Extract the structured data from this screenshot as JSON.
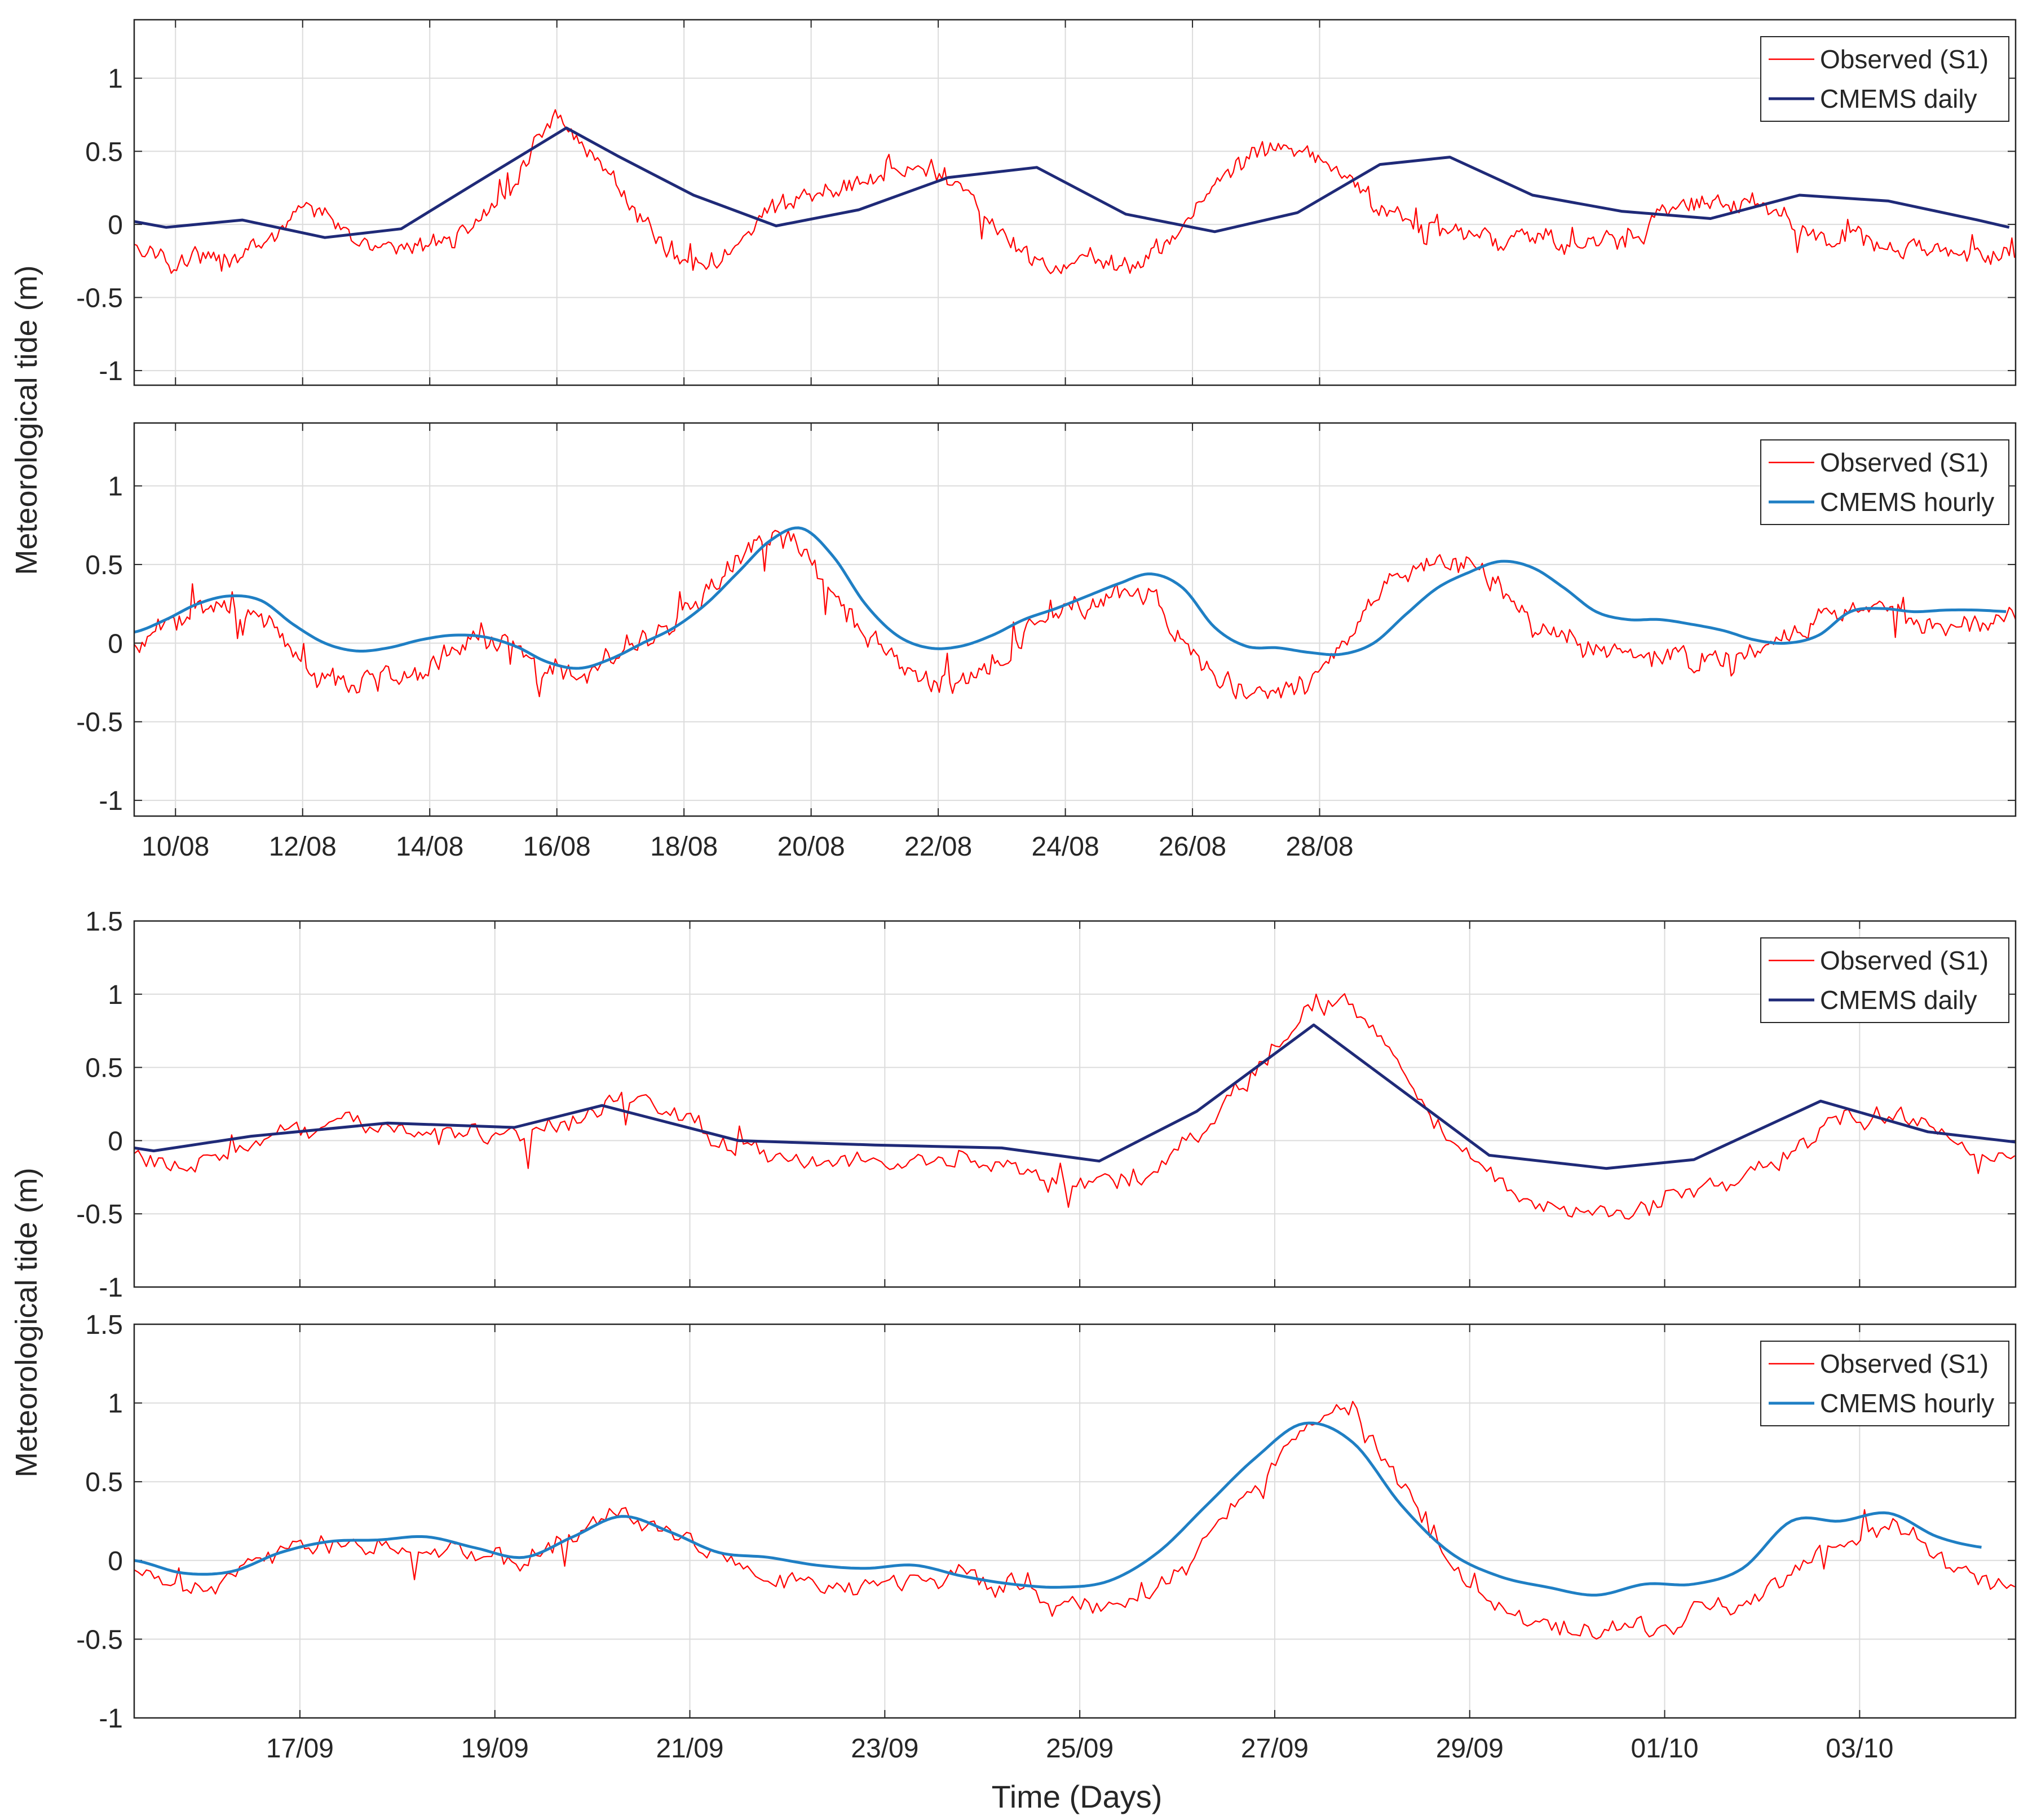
{
  "figure": {
    "ylabel_top_group": "Meteorological tide (m)",
    "ylabel_bottom_group": "Meteorological tide (m)",
    "xlabel": "Time (Days)"
  },
  "colors": {
    "observed": "#ff0000",
    "cmems_daily": "#1f2a78",
    "cmems_hourly": "#1f7fc4",
    "grid": "#dcdcdc",
    "axis": "#262626"
  },
  "chart_data": [
    {
      "type": "line",
      "panel": "a1",
      "xlim": [
        "09/08",
        "28/08+0.55"
      ],
      "ylim": [
        -1.1,
        1.4
      ],
      "yticks": [
        1,
        0.5,
        0,
        -0.5,
        -1
      ],
      "ytick_labels": [
        "1",
        "0.5",
        "0",
        "-0.5",
        "-1"
      ],
      "xticks": [
        "10/08",
        "12/08",
        "14/08",
        "16/08",
        "18/08",
        "20/08",
        "22/08",
        "24/08",
        "26/08",
        "28/08"
      ],
      "xtick_labels_shown": false,
      "grid": true,
      "legend_position": "top-right",
      "series": [
        {
          "name": "Observed (S1)",
          "style": "noisy-hourly",
          "x_days": [
            0,
            0.5,
            1,
            1.5,
            2,
            2.5,
            3,
            3.5,
            4,
            4.5,
            5,
            5.5,
            6,
            6.3,
            6.6,
            7,
            7.5,
            8,
            8.5,
            9,
            9.5,
            10,
            10.5,
            11,
            11.5,
            12,
            12.5,
            13,
            13.5,
            14,
            14.5,
            15,
            15.5,
            16,
            16.5,
            17,
            17.5,
            18,
            18.5,
            19,
            19.5,
            20,
            20.5,
            21,
            21.5,
            22,
            22.5,
            23,
            23.5,
            24,
            24.5,
            25,
            25.5,
            26,
            26.5,
            27,
            27.5,
            28,
            28.5,
            29,
            29.5
          ],
          "values": [
            -0.15,
            -0.25,
            -0.25,
            -0.2,
            -0.1,
            0.05,
            0.05,
            -0.1,
            -0.2,
            -0.15,
            -0.1,
            0.05,
            0.3,
            0.55,
            0.7,
            0.6,
            0.3,
            0.0,
            -0.2,
            -0.25,
            -0.15,
            0.1,
            0.2,
            0.25,
            0.3,
            0.35,
            0.4,
            0.25,
            0.0,
            -0.25,
            -0.3,
            -0.25,
            -0.3,
            -0.2,
            0.0,
            0.25,
            0.45,
            0.55,
            0.5,
            0.35,
            0.15,
            0.0,
            -0.05,
            -0.05,
            -0.1,
            -0.05,
            -0.15,
            -0.1,
            -0.15,
            0.05,
            0.15,
            0.15,
            0.15,
            0.05,
            -0.05,
            -0.1,
            -0.15,
            -0.15,
            -0.2,
            -0.25,
            -0.2
          ]
        },
        {
          "name": "CMEMS daily",
          "x_days": [
            0,
            0.5,
            1.7,
            3,
            4.2,
            5.4,
            6.8,
            7.6,
            8.8,
            10.1,
            11.4,
            12.8,
            14.2,
            15.6,
            17,
            18.3,
            19.6,
            20.7,
            22,
            23.4,
            24.8,
            26.2,
            27.6,
            29.0,
            29.5
          ],
          "values": [
            0.02,
            -0.02,
            0.03,
            -0.09,
            -0.03,
            0.29,
            0.66,
            0.47,
            0.2,
            -0.01,
            0.1,
            0.32,
            0.39,
            0.07,
            -0.05,
            0.08,
            0.41,
            0.46,
            0.2,
            0.09,
            0.04,
            0.2,
            0.16,
            0.03,
            -0.02
          ]
        }
      ]
    },
    {
      "type": "line",
      "panel": "a2",
      "xlim": [
        "09/08",
        "28/08+0.55"
      ],
      "ylim": [
        -1.1,
        1.4
      ],
      "yticks": [
        1,
        0.5,
        0,
        -0.5,
        -1
      ],
      "ytick_labels": [
        "1",
        "0.5",
        "0",
        "-0.5",
        "-1"
      ],
      "xticks": [
        "10/08",
        "12/08",
        "14/08",
        "16/08",
        "18/08",
        "20/08",
        "22/08",
        "24/08",
        "26/08",
        "28/08"
      ],
      "xtick_labels": [
        "10/08",
        "12/08",
        "14/08",
        "16/08",
        "18/08",
        "20/08",
        "22/08",
        "24/08",
        "26/08",
        "28/08"
      ],
      "grid": true,
      "legend_position": "top-right",
      "series": [
        {
          "name": "Observed (S1)",
          "style": "noisy-hourly",
          "x_days": [
            0,
            0.5,
            1,
            1.5,
            2,
            2.5,
            3,
            3.5,
            4,
            4.5,
            5,
            5.5,
            6,
            6.5,
            7,
            7.5,
            8,
            8.5,
            9,
            9.5,
            10,
            10.5,
            11,
            11.5,
            12,
            12.5,
            13,
            13.5,
            14,
            14.5,
            15,
            15.5,
            16,
            16.5,
            17,
            17.5,
            18,
            18.5,
            19,
            19.5,
            20,
            20.5,
            21,
            21.5,
            22,
            22.5,
            23,
            23.5,
            24,
            24.5,
            25,
            25.5,
            26,
            26.5,
            27,
            27.5,
            28,
            28.5,
            29,
            29.5
          ],
          "values": [
            -0.05,
            0.1,
            0.2,
            0.25,
            0.15,
            -0.1,
            -0.2,
            -0.25,
            -0.2,
            -0.15,
            -0.05,
            0.0,
            0.0,
            -0.15,
            -0.2,
            -0.1,
            0.0,
            0.1,
            0.3,
            0.55,
            0.7,
            0.6,
            0.3,
            0.05,
            -0.1,
            -0.25,
            -0.25,
            -0.2,
            0.05,
            0.2,
            0.25,
            0.35,
            0.3,
            0.0,
            -0.25,
            -0.3,
            -0.3,
            -0.25,
            0.0,
            0.25,
            0.45,
            0.55,
            0.5,
            0.35,
            0.1,
            0.0,
            -0.05,
            -0.05,
            -0.1,
            -0.1,
            -0.15,
            -0.05,
            0.05,
            0.15,
            0.2,
            0.2,
            0.15,
            0.1,
            0.15,
            0.15
          ]
        },
        {
          "name": "CMEMS hourly",
          "x_days": [
            0,
            0.5,
            1,
            1.5,
            2,
            2.5,
            3,
            3.5,
            4,
            4.5,
            5,
            5.5,
            6,
            6.5,
            7,
            7.5,
            8,
            8.5,
            9,
            9.5,
            10,
            10.5,
            11,
            11.5,
            12,
            12.5,
            13,
            13.5,
            14,
            14.5,
            15,
            15.5,
            16,
            16.5,
            17,
            17.5,
            18,
            18.5,
            19,
            19.5,
            20,
            20.5,
            21,
            21.5,
            22,
            22.5,
            23,
            23.5,
            24,
            24.5,
            25,
            25.5,
            26,
            26.5,
            27,
            27.5,
            28,
            28.5,
            29,
            29.5
          ],
          "values": [
            0.07,
            0.15,
            0.25,
            0.3,
            0.27,
            0.12,
            0.0,
            -0.05,
            -0.03,
            0.02,
            0.05,
            0.04,
            -0.02,
            -0.12,
            -0.16,
            -0.1,
            0.0,
            0.1,
            0.25,
            0.45,
            0.65,
            0.73,
            0.55,
            0.25,
            0.05,
            -0.03,
            -0.02,
            0.05,
            0.15,
            0.22,
            0.3,
            0.38,
            0.44,
            0.35,
            0.1,
            -0.02,
            -0.03,
            -0.06,
            -0.07,
            0.0,
            0.18,
            0.35,
            0.45,
            0.52,
            0.48,
            0.35,
            0.2,
            0.15,
            0.15,
            0.12,
            0.08,
            0.02,
            0.0,
            0.05,
            0.2,
            0.22,
            0.2,
            0.21,
            0.21,
            0.2
          ]
        }
      ]
    },
    {
      "type": "line",
      "panel": "b1",
      "xlim": [
        "15/09+0.3",
        "04/10+0.6"
      ],
      "ylim": [
        -1,
        1.5
      ],
      "yticks": [
        1.5,
        1,
        0.5,
        0,
        -0.5,
        -1
      ],
      "ytick_labels": [
        "1.5",
        "1",
        "0.5",
        "0",
        "-0.5",
        "-1"
      ],
      "xticks": [
        "17/09",
        "19/09",
        "21/09",
        "23/09",
        "25/09",
        "27/09",
        "29/09",
        "01/10",
        "03/10"
      ],
      "xtick_labels_shown": false,
      "grid": true,
      "legend_position": "top-right",
      "series": [
        {
          "name": "Observed (S1)",
          "style": "noisy-hourly",
          "x_days": [
            0,
            0.5,
            1,
            1.5,
            2,
            2.5,
            3,
            3.5,
            4,
            4.5,
            5,
            5.5,
            6,
            6.5,
            7,
            7.5,
            8,
            8.5,
            9,
            9.5,
            10,
            10.5,
            11,
            11.5,
            12,
            12.5,
            13,
            13.5,
            14,
            14.5,
            15,
            15.5,
            16,
            16.5,
            17,
            17.5,
            18,
            18.5,
            19
          ],
          "values": [
            -0.1,
            -0.2,
            -0.1,
            0.05,
            0.1,
            0.1,
            0.1,
            0.05,
            0.0,
            0.15,
            0.3,
            0.2,
            0.0,
            -0.1,
            -0.15,
            -0.15,
            -0.15,
            -0.1,
            -0.15,
            -0.3,
            -0.3,
            -0.2,
            0.1,
            0.5,
            0.85,
            0.95,
            0.5,
            0.0,
            -0.3,
            -0.45,
            -0.5,
            -0.45,
            -0.35,
            -0.25,
            -0.1,
            0.15,
            0.2,
            0.1,
            -0.15
          ]
        },
        {
          "name": "CMEMS daily",
          "x_days": [
            0,
            0.2,
            1.2,
            2.6,
            3.9,
            4.8,
            6.2,
            7.6,
            8.9,
            9.9,
            10.9,
            12.1,
            13.9,
            15.1,
            16.0,
            17.3,
            18.4,
            19.3
          ],
          "values": [
            -0.05,
            -0.07,
            0.03,
            0.12,
            0.09,
            0.24,
            0.0,
            -0.03,
            -0.05,
            -0.14,
            0.2,
            0.79,
            -0.1,
            -0.19,
            -0.13,
            0.27,
            0.06,
            -0.01
          ]
        }
      ]
    },
    {
      "type": "line",
      "panel": "b2",
      "xlim": [
        "15/09+0.3",
        "04/10+0.6"
      ],
      "ylim": [
        -1,
        1.5
      ],
      "yticks": [
        1.5,
        1,
        0.5,
        0,
        -0.5,
        -1
      ],
      "ytick_labels": [
        "1.5",
        "1",
        "0.5",
        "0",
        "-0.5",
        "-1"
      ],
      "xticks": [
        "17/09",
        "19/09",
        "21/09",
        "23/09",
        "25/09",
        "27/09",
        "29/09",
        "01/10",
        "03/10"
      ],
      "xtick_labels": [
        "17/09",
        "19/09",
        "21/09",
        "23/09",
        "25/09",
        "27/09",
        "29/09",
        "01/10",
        "03/10"
      ],
      "grid": true,
      "legend_position": "top-right",
      "series": [
        {
          "name": "Observed (S1)",
          "style": "noisy-hourly",
          "x_days": [
            0,
            0.5,
            1,
            1.5,
            2,
            2.5,
            3,
            3.5,
            4,
            4.5,
            5,
            5.5,
            6,
            6.5,
            7,
            7.5,
            8,
            8.5,
            9,
            9.5,
            10,
            10.5,
            11,
            11.5,
            12,
            12.5,
            13,
            13.5,
            14,
            14.5,
            15,
            15.5,
            16,
            16.5,
            17,
            17.5,
            18,
            18.5,
            19
          ],
          "values": [
            -0.1,
            -0.2,
            -0.1,
            0.05,
            0.1,
            0.1,
            0.1,
            0.05,
            0.0,
            0.15,
            0.3,
            0.2,
            0.0,
            -0.1,
            -0.15,
            -0.15,
            -0.15,
            -0.1,
            -0.15,
            -0.3,
            -0.3,
            -0.2,
            0.1,
            0.5,
            0.85,
            0.95,
            0.5,
            0.0,
            -0.3,
            -0.45,
            -0.5,
            -0.45,
            -0.35,
            -0.25,
            -0.1,
            0.15,
            0.2,
            0.1,
            -0.15
          ]
        },
        {
          "name": "CMEMS hourly",
          "x_days": [
            0,
            0.5,
            1,
            1.5,
            2,
            2.5,
            3,
            3.5,
            4,
            4.5,
            5,
            5.5,
            6,
            6.5,
            7,
            7.5,
            8,
            8.5,
            9,
            9.5,
            10,
            10.5,
            11,
            11.5,
            12,
            12.5,
            13,
            13.5,
            14,
            14.5,
            15,
            15.5,
            16,
            16.5,
            17,
            17.5,
            18,
            18.5,
            19
          ],
          "values": [
            0.0,
            -0.08,
            -0.07,
            0.05,
            0.12,
            0.13,
            0.15,
            0.08,
            0.02,
            0.15,
            0.28,
            0.18,
            0.05,
            0.02,
            -0.03,
            -0.05,
            -0.03,
            -0.1,
            -0.15,
            -0.17,
            -0.13,
            0.05,
            0.35,
            0.65,
            0.87,
            0.75,
            0.35,
            0.05,
            -0.1,
            -0.17,
            -0.22,
            -0.15,
            -0.15,
            -0.05,
            0.25,
            0.25,
            0.3,
            0.15,
            0.08
          ]
        }
      ]
    }
  ]
}
